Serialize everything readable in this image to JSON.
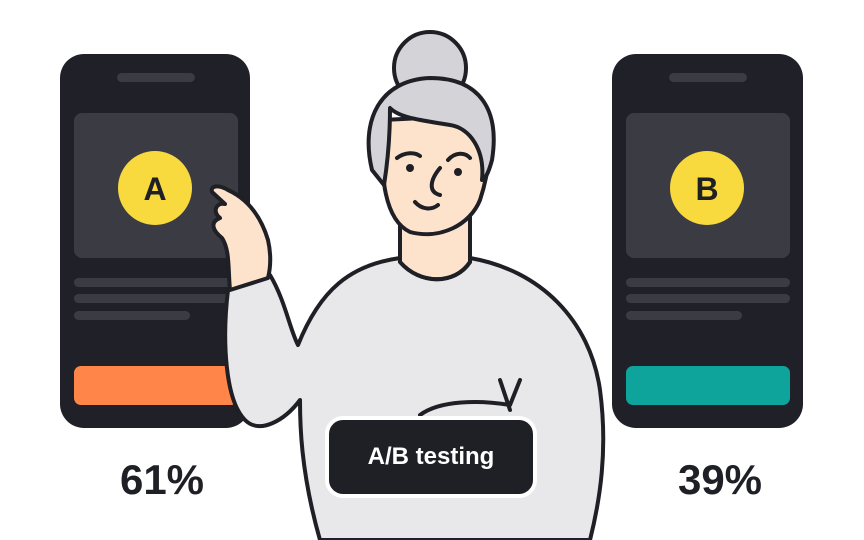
{
  "variants": [
    {
      "letter": "A",
      "result": "61%",
      "button_color": "#FF8548"
    },
    {
      "letter": "B",
      "result": "39%",
      "button_color": "#0EA49B"
    }
  ],
  "label": "A/B testing",
  "colors": {
    "phone": "#202029",
    "panel": "#3B3B44",
    "badge": "#F8DA3F",
    "skin": "#FDE3CB",
    "hair": "#D4D4D8",
    "sweater": "#E8E8EA",
    "outline": "#1f1f26"
  }
}
